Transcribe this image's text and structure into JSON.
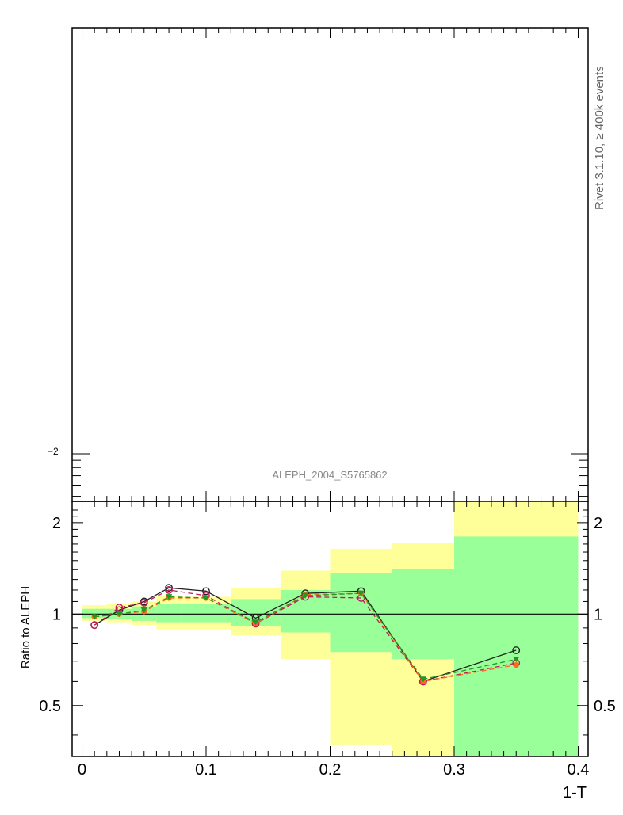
{
  "chart_data": {
    "type": "line",
    "watermark": "Rivet 3.1.10, ≥ 400k events",
    "main_panel": {
      "analysis_label": "ALEPH_2004_S5765862",
      "y_log_scale": true,
      "y_tick_labels": [
        {
          "value": 0.01,
          "base": "",
          "exponent": "−2"
        }
      ]
    },
    "ratio_panel": {
      "ylabel": "Ratio to ALEPH",
      "ylim": [
        0.34,
        2.35
      ],
      "y_tick_labels": [
        {
          "value": 0.5,
          "label": "0.5"
        },
        {
          "value": 1,
          "label": "1"
        },
        {
          "value": 2,
          "label": "2"
        }
      ],
      "reference_line": 1.0,
      "bins": [
        {
          "xlow": 0.0,
          "xhigh": 0.02,
          "green": [
            0.97,
            1.04
          ],
          "yellow": [
            0.95,
            1.07
          ]
        },
        {
          "xlow": 0.02,
          "xhigh": 0.04,
          "green": [
            0.96,
            1.04
          ],
          "yellow": [
            0.94,
            1.08
          ]
        },
        {
          "xlow": 0.04,
          "xhigh": 0.06,
          "green": [
            0.95,
            1.06
          ],
          "yellow": [
            0.92,
            1.1
          ]
        },
        {
          "xlow": 0.06,
          "xhigh": 0.08,
          "green": [
            0.94,
            1.08
          ],
          "yellow": [
            0.89,
            1.15
          ]
        },
        {
          "xlow": 0.08,
          "xhigh": 0.12,
          "green": [
            0.94,
            1.08
          ],
          "yellow": [
            0.89,
            1.14
          ]
        },
        {
          "xlow": 0.12,
          "xhigh": 0.16,
          "green": [
            0.91,
            1.12
          ],
          "yellow": [
            0.85,
            1.22
          ]
        },
        {
          "xlow": 0.16,
          "xhigh": 0.2,
          "green": [
            0.87,
            1.2
          ],
          "yellow": [
            0.71,
            1.39
          ]
        },
        {
          "xlow": 0.2,
          "xhigh": 0.25,
          "green": [
            0.75,
            1.36
          ],
          "yellow": [
            0.37,
            1.64
          ]
        },
        {
          "xlow": 0.25,
          "xhigh": 0.3,
          "green": [
            0.71,
            1.41
          ],
          "yellow": [
            0.34,
            1.72
          ]
        },
        {
          "xlow": 0.3,
          "xhigh": 0.4,
          "green": [
            0.34,
            1.8
          ],
          "yellow": [
            0.34,
            2.35
          ]
        }
      ],
      "x": [
        0.01,
        0.03,
        0.05,
        0.07,
        0.1,
        0.14,
        0.18,
        0.225,
        0.275,
        0.35
      ],
      "series": [
        {
          "color": "#222222",
          "dash": "",
          "marker": "open-circle",
          "values": [
            0.92,
            1.03,
            1.1,
            1.22,
            1.19,
            0.97,
            1.17,
            1.19,
            0.6,
            0.76
          ]
        },
        {
          "color": "#c2185b",
          "dash": "6,4",
          "marker": "open-circle",
          "values": [
            0.92,
            1.05,
            1.09,
            1.2,
            1.15,
            0.93,
            1.14,
            1.13,
            0.6,
            0.69
          ]
        },
        {
          "color": "#ff6a1a",
          "dash": "6,4",
          "marker": "filled-circle",
          "values": [
            0.98,
            1.0,
            1.02,
            1.13,
            1.13,
            0.93,
            1.16,
            1.17,
            0.6,
            0.68
          ]
        },
        {
          "color": "#1f9a1f",
          "dash": "6,4",
          "marker": "filled-triangle",
          "values": [
            0.98,
            1.0,
            1.03,
            1.14,
            1.13,
            0.94,
            1.15,
            1.17,
            0.61,
            0.71
          ]
        }
      ]
    },
    "x_axis": {
      "xlabel": "1-T",
      "xlim": [
        -0.008,
        0.408
      ],
      "tick_labels": [
        {
          "value": 0,
          "label": "0"
        },
        {
          "value": 0.1,
          "label": "0.1"
        },
        {
          "value": 0.2,
          "label": "0.2"
        },
        {
          "value": 0.3,
          "label": "0.3"
        },
        {
          "value": 0.4,
          "label": "0.4"
        }
      ]
    },
    "colors": {
      "band_inner": "#99ff99",
      "band_outer": "#ffff99",
      "frame": "#000000",
      "label_gray": "#888888"
    }
  }
}
